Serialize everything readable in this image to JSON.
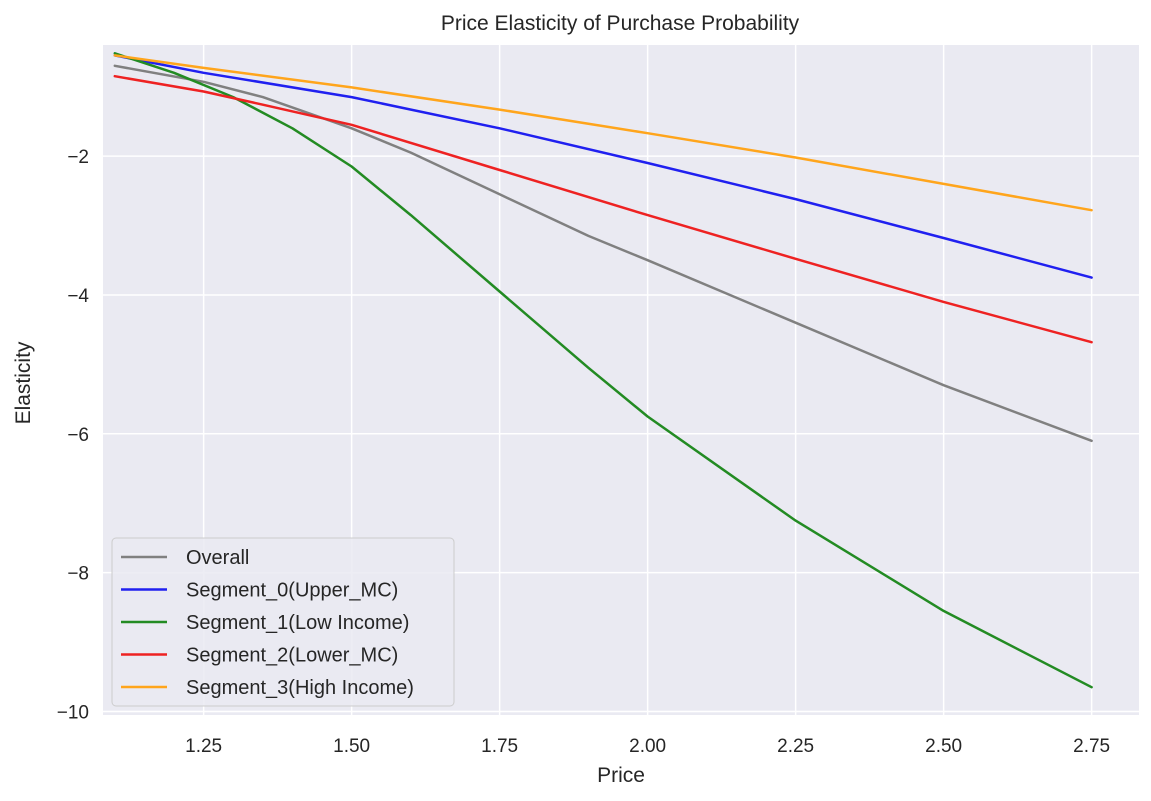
{
  "chart_data": {
    "type": "line",
    "title": "Price Elasticity of Purchase Probability",
    "xlabel": "Price",
    "ylabel": "Elasticity",
    "xlim": [
      1.08,
      2.83
    ],
    "ylim": [
      -10.05,
      -0.4
    ],
    "xticks": [
      1.25,
      1.5,
      1.75,
      2.0,
      2.25,
      2.5,
      2.75
    ],
    "xtick_labels": [
      "1.25",
      "1.50",
      "1.75",
      "2.00",
      "2.25",
      "2.50",
      "2.75"
    ],
    "yticks": [
      -2,
      -4,
      -6,
      -8,
      -10
    ],
    "ytick_labels": [
      "−2",
      "−4",
      "−6",
      "−8",
      "−10"
    ],
    "grid": true,
    "legend_position": "lower-left",
    "background_color": "#eaeaf2",
    "series": [
      {
        "name": "Overall",
        "color": "#808080",
        "x": [
          1.1,
          1.25,
          1.35,
          1.5,
          1.6,
          1.75,
          1.9,
          2.0,
          2.25,
          2.5,
          2.75
        ],
        "y": [
          -0.7,
          -0.93,
          -1.15,
          -1.6,
          -1.95,
          -2.55,
          -3.15,
          -3.5,
          -4.4,
          -5.3,
          -6.1
        ]
      },
      {
        "name": "Segment_0(Upper_MC)",
        "color": "#2020f0",
        "x": [
          1.1,
          1.25,
          1.5,
          1.75,
          2.0,
          2.25,
          2.5,
          2.75
        ],
        "y": [
          -0.55,
          -0.8,
          -1.15,
          -1.6,
          -2.1,
          -2.62,
          -3.18,
          -3.75
        ]
      },
      {
        "name": "Segment_1(Low Income)",
        "color": "#238b23",
        "x": [
          1.1,
          1.2,
          1.3,
          1.4,
          1.5,
          1.6,
          1.75,
          1.9,
          2.0,
          2.25,
          2.5,
          2.75
        ],
        "y": [
          -0.52,
          -0.8,
          -1.15,
          -1.6,
          -2.15,
          -2.85,
          -3.95,
          -5.05,
          -5.75,
          -7.25,
          -8.55,
          -9.65
        ]
      },
      {
        "name": "Segment_2(Lower_MC)",
        "color": "#ee2222",
        "x": [
          1.1,
          1.25,
          1.35,
          1.5,
          1.75,
          2.0,
          2.25,
          2.5,
          2.75
        ],
        "y": [
          -0.85,
          -1.07,
          -1.26,
          -1.55,
          -2.2,
          -2.85,
          -3.48,
          -4.1,
          -4.68
        ]
      },
      {
        "name": "Segment_3(High Income)",
        "color": "#ffa51c",
        "x": [
          1.1,
          1.25,
          1.5,
          1.75,
          2.0,
          2.25,
          2.5,
          2.75
        ],
        "y": [
          -0.55,
          -0.73,
          -1.01,
          -1.33,
          -1.67,
          -2.02,
          -2.4,
          -2.78
        ]
      }
    ]
  }
}
